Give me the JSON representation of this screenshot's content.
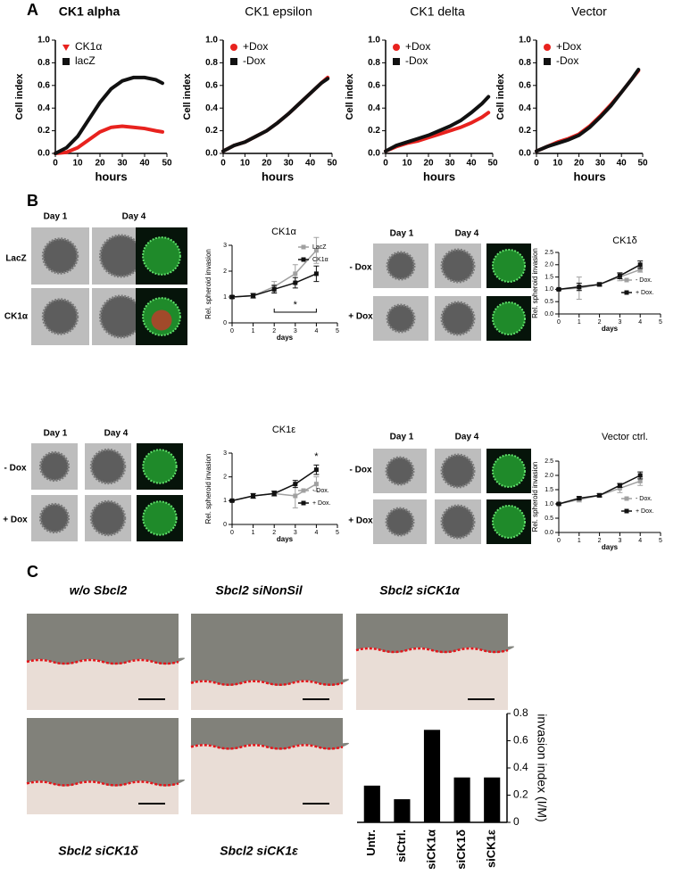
{
  "panels": [
    "A",
    "B",
    "C"
  ],
  "spheroid_panels": [
    {
      "days": [
        "Day 1",
        "Day 4"
      ],
      "rows": [
        "LacZ",
        "CK1α"
      ]
    },
    {
      "days": [
        "Day 1",
        "Day 4"
      ],
      "rows": [
        "- Dox",
        "+ Dox"
      ]
    },
    {
      "days": [
        "Day 1",
        "Day 4"
      ],
      "rows": [
        "- Dox",
        "+ Dox"
      ]
    },
    {
      "days": [
        "Day 1",
        "Day 4"
      ],
      "rows": [
        "- Dox",
        "+ Dox"
      ]
    }
  ],
  "histology": {
    "titles": [
      "w/o Sbcl2",
      "Sbcl2 siNonSil",
      "Sbcl2 siCK1α",
      "Sbcl2 siCK1δ",
      "Sbcl2 siCK1ε"
    ]
  },
  "chart_data": [
    {
      "type": "line",
      "title": "CK1 alpha",
      "xlabel": "hours",
      "ylabel": "Cell index",
      "x": [
        0,
        5,
        10,
        15,
        20,
        25,
        30,
        35,
        40,
        45,
        48
      ],
      "series": [
        {
          "name": "CK1α",
          "color": "#e8221e",
          "values": [
            0.0,
            0.01,
            0.05,
            0.12,
            0.19,
            0.23,
            0.24,
            0.23,
            0.22,
            0.2,
            0.19
          ]
        },
        {
          "name": "lacZ",
          "color": "#111111",
          "values": [
            0.0,
            0.05,
            0.15,
            0.3,
            0.45,
            0.57,
            0.64,
            0.67,
            0.67,
            0.65,
            0.62
          ]
        }
      ],
      "xlim": [
        0,
        50
      ],
      "xticks": [
        0,
        10,
        20,
        30,
        40,
        50
      ],
      "ylim": [
        0,
        1
      ],
      "yticks": [
        {
          "value": 0,
          "label": "0.0"
        },
        0.2,
        0.4,
        0.6,
        0.8,
        {
          "value": 1,
          "label": "1.0"
        }
      ],
      "legend": "upper left"
    },
    {
      "type": "line",
      "title": "CK1 epsilon",
      "xlabel": "hours",
      "ylabel": "Cell index",
      "x": [
        0,
        5,
        10,
        15,
        20,
        25,
        30,
        35,
        40,
        45,
        48
      ],
      "series": [
        {
          "name": "+Dox",
          "color": "#e8221e",
          "values": [
            0.02,
            0.07,
            0.1,
            0.15,
            0.2,
            0.27,
            0.35,
            0.44,
            0.53,
            0.62,
            0.67
          ]
        },
        {
          "name": "-Dox",
          "color": "#111111",
          "values": [
            0.02,
            0.07,
            0.1,
            0.15,
            0.2,
            0.27,
            0.35,
            0.44,
            0.53,
            0.62,
            0.66
          ]
        }
      ],
      "xlim": [
        0,
        50
      ],
      "xticks": [
        0,
        10,
        20,
        30,
        40,
        50
      ],
      "ylim": [
        0,
        1
      ],
      "yticks": [
        {
          "value": 0,
          "label": "0.0"
        },
        0.2,
        0.4,
        0.6,
        0.8,
        {
          "value": 1,
          "label": "1.0"
        }
      ],
      "legend": "upper left"
    },
    {
      "type": "line",
      "title": "CK1 delta",
      "xlabel": "hours",
      "ylabel": "Cell index",
      "x": [
        0,
        5,
        10,
        15,
        20,
        25,
        30,
        35,
        40,
        45,
        48
      ],
      "series": [
        {
          "name": "+Dox",
          "color": "#e8221e",
          "values": [
            0.02,
            0.06,
            0.09,
            0.11,
            0.14,
            0.17,
            0.2,
            0.23,
            0.27,
            0.32,
            0.36
          ]
        },
        {
          "name": "-Dox",
          "color": "#111111",
          "values": [
            0.02,
            0.07,
            0.1,
            0.13,
            0.16,
            0.2,
            0.24,
            0.29,
            0.36,
            0.44,
            0.5
          ]
        }
      ],
      "xlim": [
        0,
        50
      ],
      "xticks": [
        0,
        10,
        20,
        30,
        40,
        50
      ],
      "ylim": [
        0,
        1
      ],
      "yticks": [
        {
          "value": 0,
          "label": "0.0"
        },
        0.2,
        0.4,
        0.6,
        0.8,
        {
          "value": 1,
          "label": "1.0"
        }
      ],
      "legend": "upper left"
    },
    {
      "type": "line",
      "title": "Vector",
      "xlabel": "hours",
      "ylabel": "Cell index",
      "x": [
        0,
        5,
        10,
        15,
        20,
        25,
        30,
        35,
        40,
        45,
        48
      ],
      "series": [
        {
          "name": "+Dox",
          "color": "#e8221e",
          "values": [
            0.02,
            0.06,
            0.1,
            0.13,
            0.17,
            0.24,
            0.33,
            0.43,
            0.54,
            0.66,
            0.73
          ]
        },
        {
          "name": "-Dox",
          "color": "#111111",
          "values": [
            0.02,
            0.06,
            0.09,
            0.12,
            0.16,
            0.23,
            0.32,
            0.42,
            0.54,
            0.66,
            0.74
          ]
        }
      ],
      "xlim": [
        0,
        50
      ],
      "xticks": [
        0,
        10,
        20,
        30,
        40,
        50
      ],
      "ylim": [
        0,
        1
      ],
      "yticks": [
        {
          "value": 0,
          "label": "0.0"
        },
        0.2,
        0.4,
        0.6,
        0.8,
        {
          "value": 1,
          "label": "1.0"
        }
      ],
      "legend": "upper left"
    },
    {
      "type": "line",
      "title": "CK1α",
      "xlabel": "days",
      "ylabel": "Rel. spheroid invasion",
      "x": [
        0,
        1,
        2,
        3,
        4
      ],
      "markers": true,
      "series": [
        {
          "name": "LacZ",
          "color": "#a0a0a0",
          "values": [
            1.0,
            1.05,
            1.4,
            1.9,
            2.8
          ],
          "errors": [
            0.05,
            0.1,
            0.2,
            0.35,
            0.5
          ]
        },
        {
          "name": "CK1α",
          "color": "#111111",
          "values": [
            1.0,
            1.05,
            1.3,
            1.55,
            1.9
          ],
          "errors": [
            0.05,
            0.08,
            0.15,
            0.2,
            0.3
          ]
        }
      ],
      "xlim": [
        0,
        5
      ],
      "xticks": [
        0,
        1,
        2,
        3,
        4,
        5
      ],
      "ylim": [
        0,
        3
      ],
      "yticks": [
        0,
        1,
        2,
        3
      ],
      "legend": "upper right",
      "annotations": [
        {
          "text": "*",
          "x": 3,
          "y": 0.55,
          "bracket": [
            2,
            4
          ]
        }
      ]
    },
    {
      "type": "line",
      "title": "CK1δ",
      "xlabel": "days",
      "ylabel": "Rel. spheroid invasion",
      "x": [
        0,
        1,
        2,
        3,
        4
      ],
      "markers": true,
      "series": [
        {
          "name": "- Dox.",
          "color": "#a0a0a0",
          "values": [
            1.0,
            1.05,
            1.2,
            1.5,
            1.8
          ],
          "errors": [
            0.03,
            0.45,
            0.08,
            0.15,
            0.1
          ]
        },
        {
          "name": "+ Dox.",
          "color": "#111111",
          "values": [
            1.0,
            1.1,
            1.2,
            1.55,
            2.0
          ],
          "errors": [
            0.03,
            0.15,
            0.05,
            0.12,
            0.15
          ]
        }
      ],
      "xlim": [
        0,
        5
      ],
      "xticks": [
        0,
        1,
        2,
        3,
        4,
        5
      ],
      "ylim": [
        0,
        2.5
      ],
      "yticks": [
        {
          "value": 0,
          "label": "0.0"
        },
        0.5,
        {
          "value": 1,
          "label": "1.0"
        },
        1.5,
        {
          "value": 2,
          "label": "2.0"
        },
        2.5
      ],
      "legend": "lower right"
    },
    {
      "type": "line",
      "title": "CK1ε",
      "xlabel": "days",
      "ylabel": "Rel. spheroid invasion",
      "x": [
        0,
        1,
        2,
        3,
        4
      ],
      "markers": true,
      "series": [
        {
          "name": "- Dox.",
          "color": "#a0a0a0",
          "values": [
            1.0,
            1.2,
            1.3,
            1.2,
            1.7
          ],
          "errors": [
            0.03,
            0.1,
            0.1,
            0.5,
            0.3
          ]
        },
        {
          "name": "+ Dox.",
          "color": "#111111",
          "values": [
            1.0,
            1.2,
            1.3,
            1.7,
            2.3
          ],
          "errors": [
            0.03,
            0.1,
            0.1,
            0.15,
            0.2
          ]
        }
      ],
      "xlim": [
        0,
        5
      ],
      "xticks": [
        0,
        1,
        2,
        3,
        4,
        5
      ],
      "ylim": [
        0,
        3
      ],
      "yticks": [
        0,
        1,
        2,
        3
      ],
      "legend": "lower right",
      "annotations": [
        {
          "text": "*",
          "x": 4,
          "y": 2.7
        }
      ]
    },
    {
      "type": "line",
      "title": "Vector ctrl.",
      "xlabel": "days",
      "ylabel": "Rel. spheroid invasion",
      "x": [
        0,
        1,
        2,
        3,
        4
      ],
      "markers": true,
      "series": [
        {
          "name": "- Dox.",
          "color": "#a0a0a0",
          "values": [
            1.0,
            1.15,
            1.3,
            1.55,
            1.8
          ],
          "errors": [
            0.03,
            0.08,
            0.07,
            0.15,
            0.15
          ]
        },
        {
          "name": "+ Dox.",
          "color": "#111111",
          "values": [
            1.0,
            1.2,
            1.3,
            1.65,
            2.0
          ],
          "errors": [
            0.03,
            0.06,
            0.05,
            0.07,
            0.12
          ]
        }
      ],
      "xlim": [
        0,
        5
      ],
      "xticks": [
        0,
        1,
        2,
        3,
        4,
        5
      ],
      "ylim": [
        0,
        2.5
      ],
      "yticks": [
        {
          "value": 0,
          "label": "0.0"
        },
        0.5,
        {
          "value": 1,
          "label": "1.0"
        },
        1.5,
        {
          "value": 2,
          "label": "2.0"
        },
        2.5
      ],
      "legend": "lower right"
    },
    {
      "type": "bar",
      "ylabel": "invasion index (I/M)",
      "categories": [
        "Untr.",
        "siCtrl.",
        "siCK1α",
        "siCK1δ",
        "siCK1ε"
      ],
      "values": [
        0.27,
        0.17,
        0.68,
        0.33,
        0.33
      ],
      "color": "#000000",
      "ylim": [
        0,
        0.8
      ],
      "yticks": [
        0,
        0.2,
        0.4,
        0.6,
        0.8
      ],
      "y_axis_side": "right"
    }
  ]
}
